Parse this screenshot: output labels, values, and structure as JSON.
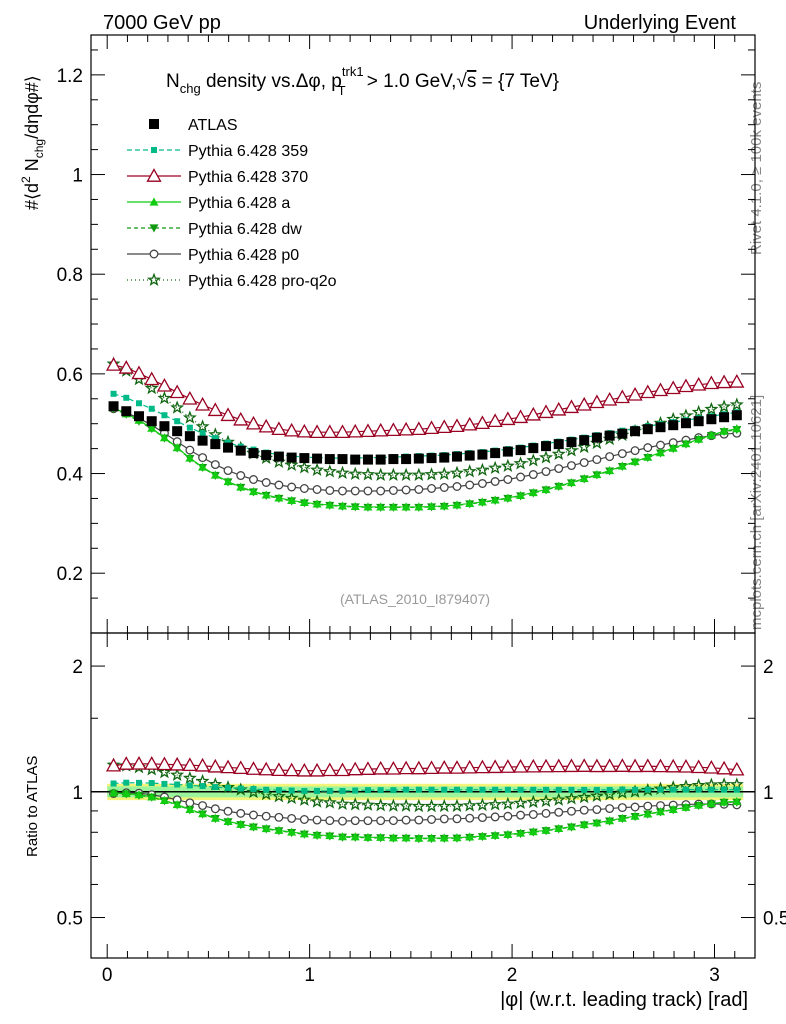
{
  "header": {
    "left": "7000 GeV pp",
    "right": "Underlying Event"
  },
  "side_text": {
    "rivet": "Rivet 4.1.0, ≥ 100k events",
    "mcplots": "mcplots.cern.ch [arXiv:2401.10621]"
  },
  "watermark": "(ATLAS_2010_I879407)",
  "chart_data": {
    "type": "line",
    "title": "N_chg density vs. Δφ, p_T^trk1 > 1.0 GeV, √s = {7 TeV}",
    "title_parts": {
      "n": "N",
      "n_sub": "chg",
      "mid": " density vs.Δφ, p",
      "p_sup": "trk1",
      "p_sub": "T",
      "tail": " > 1.0 GeV,",
      "sqrt": "√",
      "s": "s",
      "end": " = {7 TeV}"
    },
    "xlabel": "|φ| (w.r.t. leading track) [rad]",
    "ylabel": "#⟨d² N_chg/dηdφ#⟩",
    "ylabel_parts": {
      "a": "#⟨d",
      "sup": "2",
      "b": " N",
      "sub": "chg",
      "c": "/dηdφ#⟩"
    },
    "ratio_ylabel": "Ratio to ATLAS",
    "xlim": [
      -0.08,
      3.2
    ],
    "ylim": [
      0.08,
      1.28
    ],
    "ratio_ylim": [
      0.4,
      2.4
    ],
    "x_ticks": [
      "0",
      "1",
      "2",
      "3"
    ],
    "y_ticks": [
      "0.2",
      "0.4",
      "0.6",
      "0.8",
      "1",
      "1.2"
    ],
    "ratio_ticks": [
      "0.5",
      "1",
      "2"
    ],
    "band_inner": 0.03,
    "band_outer": 0.045,
    "x": [
      0.0314,
      0.0942,
      0.157,
      0.2199,
      0.2827,
      0.3456,
      0.4084,
      0.4712,
      0.5341,
      0.5969,
      0.6597,
      0.7226,
      0.7854,
      0.8482,
      0.9111,
      0.9739,
      1.0367,
      1.0996,
      1.1624,
      1.2252,
      1.2881,
      1.3509,
      1.4137,
      1.4765,
      1.5394,
      1.6022,
      1.665,
      1.7279,
      1.7907,
      1.8535,
      1.9164,
      1.9792,
      2.042,
      2.1049,
      2.1677,
      2.2305,
      2.2934,
      2.3562,
      2.419,
      2.4819,
      2.5447,
      2.6075,
      2.6704,
      2.7332,
      2.796,
      2.8589,
      2.9217,
      2.9845,
      3.0473,
      3.1102
    ],
    "series": [
      {
        "name": "ATLAS",
        "color": "#000000",
        "marker": "square",
        "line": "none",
        "ms": 10,
        "values": [
          0.535,
          0.525,
          0.515,
          0.505,
          0.495,
          0.485,
          0.475,
          0.466,
          0.459,
          0.452,
          0.446,
          0.441,
          0.437,
          0.434,
          0.432,
          0.431,
          0.43,
          0.429,
          0.429,
          0.428,
          0.428,
          0.428,
          0.429,
          0.429,
          0.43,
          0.431,
          0.432,
          0.434,
          0.436,
          0.438,
          0.441,
          0.444,
          0.447,
          0.451,
          0.455,
          0.459,
          0.463,
          0.467,
          0.472,
          0.476,
          0.48,
          0.485,
          0.489,
          0.493,
          0.497,
          0.501,
          0.505,
          0.509,
          0.513,
          0.517
        ]
      },
      {
        "name": "Pythia 6.428 359",
        "color": "#00bb88",
        "marker": "square",
        "line": "5,3",
        "ms": 6,
        "values": [
          0.56,
          0.552,
          0.541,
          0.53,
          0.517,
          0.505,
          0.492,
          0.481,
          0.471,
          0.462,
          0.454,
          0.448,
          0.442,
          0.438,
          0.435,
          0.433,
          0.432,
          0.431,
          0.431,
          0.431,
          0.432,
          0.432,
          0.433,
          0.434,
          0.435,
          0.436,
          0.437,
          0.439,
          0.441,
          0.443,
          0.446,
          0.449,
          0.452,
          0.456,
          0.46,
          0.464,
          0.468,
          0.472,
          0.477,
          0.481,
          0.486,
          0.49,
          0.495,
          0.499,
          0.503,
          0.507,
          0.511,
          0.515,
          0.519,
          0.523
        ]
      },
      {
        "name": "Pythia 6.428 370",
        "color": "#990022",
        "marker": "open-triangle",
        "line": "solid",
        "ms": 13,
        "values": [
          0.618,
          0.612,
          0.601,
          0.589,
          0.576,
          0.563,
          0.55,
          0.538,
          0.527,
          0.517,
          0.508,
          0.5,
          0.494,
          0.489,
          0.486,
          0.484,
          0.483,
          0.483,
          0.483,
          0.484,
          0.485,
          0.486,
          0.487,
          0.488,
          0.489,
          0.491,
          0.493,
          0.495,
          0.498,
          0.501,
          0.505,
          0.509,
          0.513,
          0.518,
          0.523,
          0.528,
          0.533,
          0.538,
          0.543,
          0.548,
          0.553,
          0.558,
          0.563,
          0.567,
          0.571,
          0.575,
          0.578,
          0.581,
          0.583,
          0.584
        ]
      },
      {
        "name": "Pythia 6.428 a",
        "color": "#11cc11",
        "marker": "triangle-up",
        "line": "solid",
        "ms": 9,
        "values": [
          0.532,
          0.52,
          0.507,
          0.491,
          0.472,
          0.452,
          0.431,
          0.413,
          0.397,
          0.384,
          0.373,
          0.364,
          0.357,
          0.351,
          0.346,
          0.342,
          0.339,
          0.337,
          0.335,
          0.334,
          0.333,
          0.333,
          0.333,
          0.333,
          0.333,
          0.334,
          0.335,
          0.337,
          0.34,
          0.343,
          0.347,
          0.351,
          0.356,
          0.362,
          0.368,
          0.375,
          0.382,
          0.39,
          0.398,
          0.406,
          0.415,
          0.424,
          0.433,
          0.442,
          0.451,
          0.46,
          0.469,
          0.477,
          0.485,
          0.49
        ]
      },
      {
        "name": "Pythia 6.428 dw",
        "color": "#119911",
        "marker": "triangle-down",
        "line": "4,3",
        "ms": 9,
        "values": [
          0.53,
          0.519,
          0.505,
          0.49,
          0.471,
          0.451,
          0.43,
          0.412,
          0.396,
          0.383,
          0.372,
          0.363,
          0.356,
          0.35,
          0.345,
          0.341,
          0.338,
          0.336,
          0.334,
          0.333,
          0.332,
          0.332,
          0.332,
          0.332,
          0.332,
          0.333,
          0.334,
          0.336,
          0.339,
          0.342,
          0.346,
          0.35,
          0.355,
          0.361,
          0.367,
          0.374,
          0.381,
          0.389,
          0.397,
          0.405,
          0.414,
          0.423,
          0.432,
          0.441,
          0.45,
          0.459,
          0.468,
          0.476,
          0.484,
          0.488
        ]
      },
      {
        "name": "Pythia 6.428 p0",
        "color": "#444444",
        "marker": "open-circle",
        "line": "solid",
        "ms": 9,
        "values": [
          0.53,
          0.522,
          0.511,
          0.497,
          0.481,
          0.464,
          0.447,
          0.432,
          0.418,
          0.406,
          0.396,
          0.388,
          0.382,
          0.377,
          0.373,
          0.37,
          0.368,
          0.366,
          0.365,
          0.365,
          0.365,
          0.365,
          0.366,
          0.367,
          0.368,
          0.37,
          0.372,
          0.374,
          0.377,
          0.38,
          0.384,
          0.388,
          0.393,
          0.398,
          0.404,
          0.41,
          0.416,
          0.422,
          0.428,
          0.434,
          0.44,
          0.446,
          0.452,
          0.457,
          0.462,
          0.467,
          0.472,
          0.476,
          0.479,
          0.481
        ]
      },
      {
        "name": "Pythia 6.428 pro-q2o",
        "color": "#116611",
        "marker": "star",
        "line": "1,3",
        "ms": 11,
        "values": [
          0.62,
          0.606,
          0.589,
          0.571,
          0.551,
          0.532,
          0.512,
          0.494,
          0.478,
          0.463,
          0.451,
          0.44,
          0.431,
          0.423,
          0.417,
          0.412,
          0.407,
          0.404,
          0.401,
          0.399,
          0.398,
          0.397,
          0.397,
          0.397,
          0.397,
          0.398,
          0.399,
          0.401,
          0.404,
          0.407,
          0.411,
          0.415,
          0.42,
          0.426,
          0.432,
          0.439,
          0.446,
          0.453,
          0.461,
          0.469,
          0.477,
          0.485,
          0.493,
          0.501,
          0.509,
          0.516,
          0.523,
          0.529,
          0.534,
          0.538
        ]
      }
    ]
  }
}
